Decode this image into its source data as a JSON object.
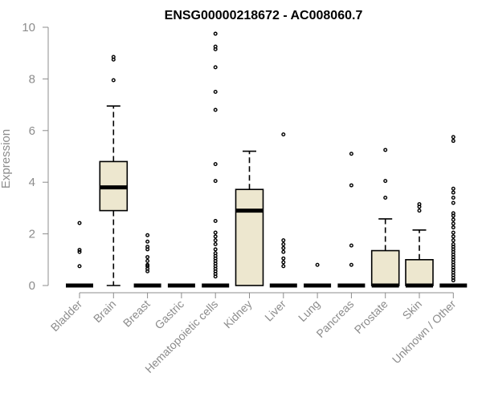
{
  "chart_data": {
    "type": "box",
    "title": "ENSG00000218672 - AC008060.7",
    "xlabel": "",
    "ylabel": "Expression",
    "ylim": [
      0,
      10
    ],
    "yticks": [
      0,
      2,
      4,
      6,
      8,
      10
    ],
    "box_fill": "#ede7cf",
    "categories": [
      "Bladder",
      "Brain",
      "Breast",
      "Gastric",
      "Hematopoietic cells",
      "Kidney",
      "Liver",
      "Lung",
      "Pancreas",
      "Prostate",
      "Skin",
      "Unknown / Other"
    ],
    "boxes": [
      {
        "min": 0,
        "q1": 0,
        "median": 0,
        "q3": 0,
        "max": 0,
        "outliers": [
          2.42,
          1.38,
          1.3,
          0.75
        ]
      },
      {
        "min": 0,
        "q1": 2.9,
        "median": 3.8,
        "q3": 4.8,
        "max": 6.95,
        "outliers": [
          8.85,
          8.75,
          7.95
        ]
      },
      {
        "min": 0,
        "q1": 0,
        "median": 0,
        "q3": 0,
        "max": 0,
        "outliers": [
          1.95,
          1.7,
          1.5,
          1.4,
          1.1,
          0.95,
          0.8,
          0.75,
          0.65,
          0.55
        ]
      },
      {
        "min": 0,
        "q1": 0,
        "median": 0,
        "q3": 0,
        "max": 0,
        "outliers": []
      },
      {
        "min": 0,
        "q1": 0,
        "median": 0,
        "q3": 0,
        "max": 0,
        "outliers": [
          9.75,
          9.25,
          9.15,
          8.45,
          7.5,
          6.8,
          4.7,
          4.05,
          2.5,
          2.05,
          1.9,
          1.75,
          1.6,
          1.4,
          1.25,
          1.15,
          1.05,
          0.95,
          0.85,
          0.75,
          0.65,
          0.55,
          0.45,
          0.35
        ]
      },
      {
        "min": 0,
        "q1": 0,
        "median": 2.9,
        "q3": 3.72,
        "max": 5.2,
        "outliers": []
      },
      {
        "min": 0,
        "q1": 0,
        "median": 0,
        "q3": 0,
        "max": 0,
        "outliers": [
          5.85,
          1.75,
          1.6,
          1.45,
          1.3,
          1.05,
          0.9,
          0.75
        ]
      },
      {
        "min": 0,
        "q1": 0,
        "median": 0,
        "q3": 0,
        "max": 0,
        "outliers": [
          0.8
        ]
      },
      {
        "min": 0,
        "q1": 0,
        "median": 0,
        "q3": 0,
        "max": 0,
        "outliers": [
          5.1,
          3.88,
          1.55,
          0.8
        ]
      },
      {
        "min": 0,
        "q1": 0,
        "median": 0,
        "q3": 1.35,
        "max": 2.58,
        "outliers": [
          5.25,
          4.05,
          3.4
        ]
      },
      {
        "min": 0,
        "q1": 0,
        "median": 0,
        "q3": 1.0,
        "max": 2.15,
        "outliers": [
          3.15,
          3.05,
          2.9
        ]
      },
      {
        "min": 0,
        "q1": 0,
        "median": 0,
        "q3": 0,
        "max": 0,
        "outliers": [
          5.75,
          5.6,
          3.75,
          3.6,
          3.4,
          3.2,
          2.8,
          2.7,
          2.55,
          2.4,
          2.25,
          2.05,
          1.9,
          1.75,
          1.6,
          1.5,
          1.4,
          1.3,
          1.2,
          1.1,
          1.0,
          0.9,
          0.8,
          0.7,
          0.6,
          0.5,
          0.4,
          0.3,
          0.2
        ]
      }
    ]
  }
}
